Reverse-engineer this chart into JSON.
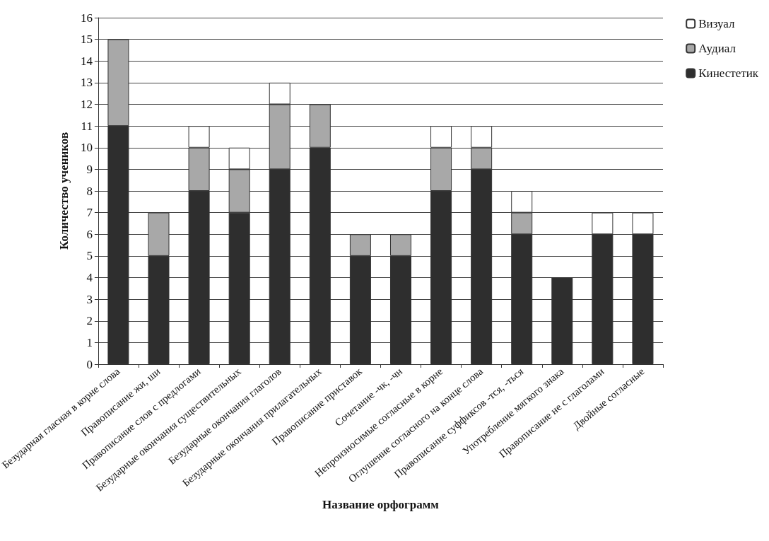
{
  "chart_data": {
    "type": "bar",
    "stacked": true,
    "xlabel": "Название орфограмм",
    "ylabel": "Количество учеников",
    "categories": [
      "Безударная гласная в корне слова",
      "Правописание жи, ши",
      "Правописание слов с предлогами",
      "Безударные окончания существительных",
      "Безударные окончания глаголов",
      "Безударные окончания прилагательных",
      "Правописание приставок",
      "Сочетание -чк, -чн",
      "Непроизносимые согласные в корне",
      "Оглушение согласного на конце слова",
      "Правописание суффиксов -тся, -ться",
      "Употребление мягкого знака",
      "Правописание не с глаголами",
      "Двойные согласные"
    ],
    "series": [
      {
        "name": "Кинестетик",
        "color": "#2e2e2e",
        "values": [
          11,
          5,
          8,
          7,
          9,
          10,
          5,
          5,
          8,
          9,
          6,
          4,
          6,
          6
        ]
      },
      {
        "name": "Аудиал",
        "color": "#a8a8a8",
        "values": [
          4,
          2,
          2,
          2,
          3,
          2,
          1,
          1,
          2,
          1,
          1,
          0,
          0,
          0
        ]
      },
      {
        "name": "Визуал",
        "color": "#ffffff",
        "values": [
          0,
          0,
          1,
          1,
          1,
          0,
          0,
          0,
          1,
          1,
          1,
          0,
          1,
          1
        ]
      }
    ],
    "ylim": [
      0,
      16
    ],
    "yticks": [
      0,
      1,
      2,
      3,
      4,
      5,
      6,
      7,
      8,
      9,
      10,
      11,
      12,
      13,
      14,
      15,
      16
    ],
    "grid": "y",
    "legend": "top right"
  }
}
